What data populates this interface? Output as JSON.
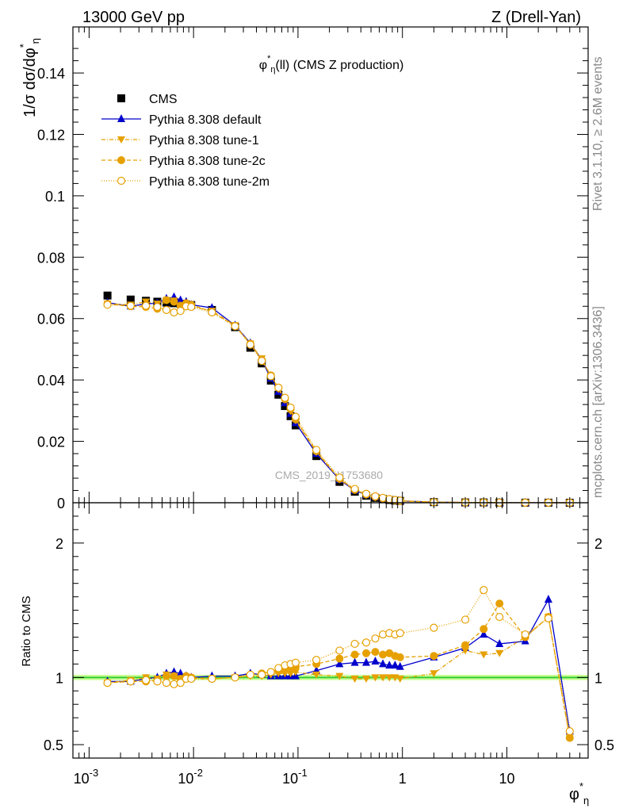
{
  "header": {
    "left": "13000 GeV pp",
    "right": "Z (Drell-Yan)"
  },
  "plot_title": {
    "var": "φ",
    "sup": "*",
    "sub": "η",
    "rest": "(ll) (CMS Z production)"
  },
  "side_text": {
    "rivet": "Rivet 3.1.10, ≥ 2.6M events",
    "mcplots": "mcplots.cern.ch [arXiv:1306.3436]"
  },
  "watermark": "CMS_2019_I1753680",
  "axes": {
    "main_ylabel": "1/σ dσ/dφ",
    "main_ylabel_sup": "*",
    "main_ylabel_sub": "η",
    "ratio_ylabel": "Ratio to CMS",
    "xlabel": "φ",
    "xlabel_sup": "*",
    "xlabel_sub": "η"
  },
  "colors": {
    "cms": "#000000",
    "default": "#0000cc",
    "tunes": "#e6a000",
    "band_green": "#33cc33",
    "band_fill": "#ccff99"
  },
  "chart_data": [
    {
      "type": "scatter",
      "xscale": "log",
      "xlim": [
        0.0007,
        60
      ],
      "ylim": [
        0,
        0.155
      ],
      "yticks": [
        0,
        0.02,
        0.04,
        0.06,
        0.08,
        0.1,
        0.12,
        0.14
      ],
      "ytick_labels": [
        "0",
        "0.02",
        "0.04",
        "0.06",
        "0.08",
        "0.1",
        "0.12",
        "0.14"
      ],
      "legend_position": "top-left",
      "x": [
        0.0015,
        0.0025,
        0.0035,
        0.0045,
        0.0055,
        0.0065,
        0.0075,
        0.0085,
        0.0095,
        0.015,
        0.025,
        0.035,
        0.045,
        0.055,
        0.065,
        0.075,
        0.085,
        0.095,
        0.15,
        0.25,
        0.35,
        0.45,
        0.55,
        0.65,
        0.75,
        0.85,
        0.95,
        2,
        4,
        6,
        8.5,
        15,
        25,
        40
      ],
      "series": [
        {
          "name": "CMS",
          "style": "cms",
          "values": [
            0.0675,
            0.0662,
            0.0658,
            0.0655,
            0.0652,
            0.065,
            0.0648,
            0.0646,
            0.0644,
            0.0628,
            0.0572,
            0.0505,
            0.0454,
            0.0398,
            0.0352,
            0.0315,
            0.0282,
            0.0252,
            0.0152,
            0.0068,
            0.0036,
            0.0023,
            0.0016,
            0.0012,
            0.0009,
            0.0007,
            0.0006,
            0.0002,
            0.0001,
            0.0001,
            5e-05,
            3e-05,
            2e-05,
            1e-05
          ]
        },
        {
          "name": "Pythia 8.308 default",
          "style": "default",
          "values": [
            0.0652,
            0.064,
            0.0648,
            0.065,
            0.0665,
            0.067,
            0.066,
            0.0655,
            0.0645,
            0.0635,
            0.0578,
            0.052,
            0.0465,
            0.0405,
            0.0362,
            0.0325,
            0.029,
            0.026,
            0.016,
            0.0075,
            0.004,
            0.0026,
            0.0018,
            0.0013,
            0.001,
            0.0008,
            0.0006,
            0.0002,
            0.0001,
            0.0001,
            5e-05,
            3e-05,
            2e-05,
            1e-05
          ]
        },
        {
          "name": "Pythia 8.308 tune-1",
          "style": "tune1",
          "values": [
            0.0648,
            0.0645,
            0.0655,
            0.0648,
            0.066,
            0.0658,
            0.064,
            0.0642,
            0.064,
            0.0625,
            0.0578,
            0.0518,
            0.047,
            0.0412,
            0.037,
            0.0335,
            0.0298,
            0.0268,
            0.0165,
            0.0076,
            0.0041,
            0.0025,
            0.0017,
            0.0013,
            0.001,
            0.0008,
            0.0006,
            0.0002,
            0.0001,
            0.0001,
            5e-05,
            3e-05,
            2e-05,
            1e-05
          ]
        },
        {
          "name": "Pythia 8.308 tune-2c",
          "style": "tune2c",
          "values": [
            0.0648,
            0.064,
            0.0638,
            0.0632,
            0.066,
            0.0655,
            0.0642,
            0.065,
            0.0645,
            0.0622,
            0.0575,
            0.0518,
            0.0465,
            0.0415,
            0.0375,
            0.0338,
            0.0305,
            0.0272,
            0.0168,
            0.0078,
            0.0042,
            0.0027,
            0.0019,
            0.0014,
            0.0011,
            0.0008,
            0.0006,
            0.0002,
            0.0001,
            0.0001,
            5e-05,
            3e-05,
            2e-05,
            1e-05
          ]
        },
        {
          "name": "Pythia 8.308 tune-2m",
          "style": "tune2m",
          "values": [
            0.0645,
            0.0642,
            0.0642,
            0.0638,
            0.0628,
            0.062,
            0.0625,
            0.064,
            0.0638,
            0.062,
            0.0575,
            0.0515,
            0.0462,
            0.0412,
            0.0375,
            0.0342,
            0.031,
            0.028,
            0.0172,
            0.0082,
            0.0045,
            0.0029,
            0.0021,
            0.0016,
            0.0012,
            0.0009,
            0.0007,
            0.0002,
            0.0001,
            0.0001,
            5e-05,
            3e-05,
            2e-05,
            1e-05
          ]
        }
      ]
    },
    {
      "type": "scatter",
      "name": "ratio",
      "xscale": "log",
      "xlim": [
        0.0007,
        60
      ],
      "ylim": [
        0.4,
        2.3
      ],
      "yticks": [
        0.5,
        1,
        2
      ],
      "ytick_labels": [
        "0.5",
        "1",
        "2"
      ],
      "xticks": [
        0.001,
        0.01,
        0.1,
        1,
        10
      ],
      "xtick_labels": [
        "10^-3",
        "10^-2",
        "10^-1",
        "1",
        "10"
      ],
      "x": [
        0.0015,
        0.0025,
        0.0035,
        0.0045,
        0.0055,
        0.0065,
        0.0075,
        0.0085,
        0.0095,
        0.015,
        0.025,
        0.035,
        0.045,
        0.055,
        0.065,
        0.075,
        0.085,
        0.095,
        0.15,
        0.25,
        0.35,
        0.45,
        0.55,
        0.65,
        0.75,
        0.85,
        0.95,
        2,
        4,
        6,
        8.5,
        15,
        25,
        40
      ],
      "series": [
        {
          "name": "Pythia 8.308 default",
          "style": "default",
          "values": [
            0.97,
            0.97,
            0.99,
            1.0,
            1.03,
            1.04,
            1.03,
            1.01,
            1.0,
            1.01,
            1.01,
            1.03,
            1.02,
            1.01,
            1.01,
            1.01,
            1.01,
            1.01,
            1.05,
            1.1,
            1.11,
            1.11,
            1.12,
            1.1,
            1.09,
            1.09,
            1.08,
            1.15,
            1.22,
            1.32,
            1.25,
            1.27,
            1.58,
            0.6
          ]
        },
        {
          "name": "Pythia 8.308 tune-1",
          "style": "tune1",
          "values": [
            0.96,
            0.98,
            1.0,
            0.99,
            1.02,
            1.01,
            0.99,
            0.99,
            0.99,
            0.99,
            1.0,
            1.01,
            1.01,
            1.02,
            1.03,
            1.03,
            1.03,
            1.04,
            1.02,
            1.01,
            0.99,
            0.99,
            1.0,
            1.0,
            1.0,
            1.0,
            0.99,
            1.03,
            1.2,
            1.17,
            1.18,
            1.3,
            1.45,
            0.55
          ]
        },
        {
          "name": "Pythia 8.308 tune-2c",
          "style": "tune2c",
          "values": [
            0.96,
            0.97,
            0.97,
            0.98,
            1.01,
            1.01,
            0.99,
            1.01,
            1.0,
            0.99,
            1.0,
            1.02,
            1.03,
            1.04,
            1.05,
            1.07,
            1.08,
            1.08,
            1.1,
            1.14,
            1.17,
            1.18,
            1.19,
            1.17,
            1.18,
            1.16,
            1.15,
            1.16,
            1.24,
            1.36,
            1.55,
            1.3,
            1.45,
            0.55
          ]
        },
        {
          "name": "Pythia 8.308 tune-2m",
          "style": "tune2m",
          "values": [
            0.96,
            0.97,
            0.98,
            0.97,
            0.96,
            0.95,
            0.96,
            0.99,
            0.99,
            0.99,
            1.0,
            1.02,
            1.02,
            1.04,
            1.07,
            1.09,
            1.1,
            1.11,
            1.13,
            1.2,
            1.25,
            1.26,
            1.29,
            1.32,
            1.33,
            1.32,
            1.33,
            1.37,
            1.43,
            1.65,
            1.45,
            1.32,
            1.44,
            0.6
          ]
        }
      ]
    }
  ]
}
